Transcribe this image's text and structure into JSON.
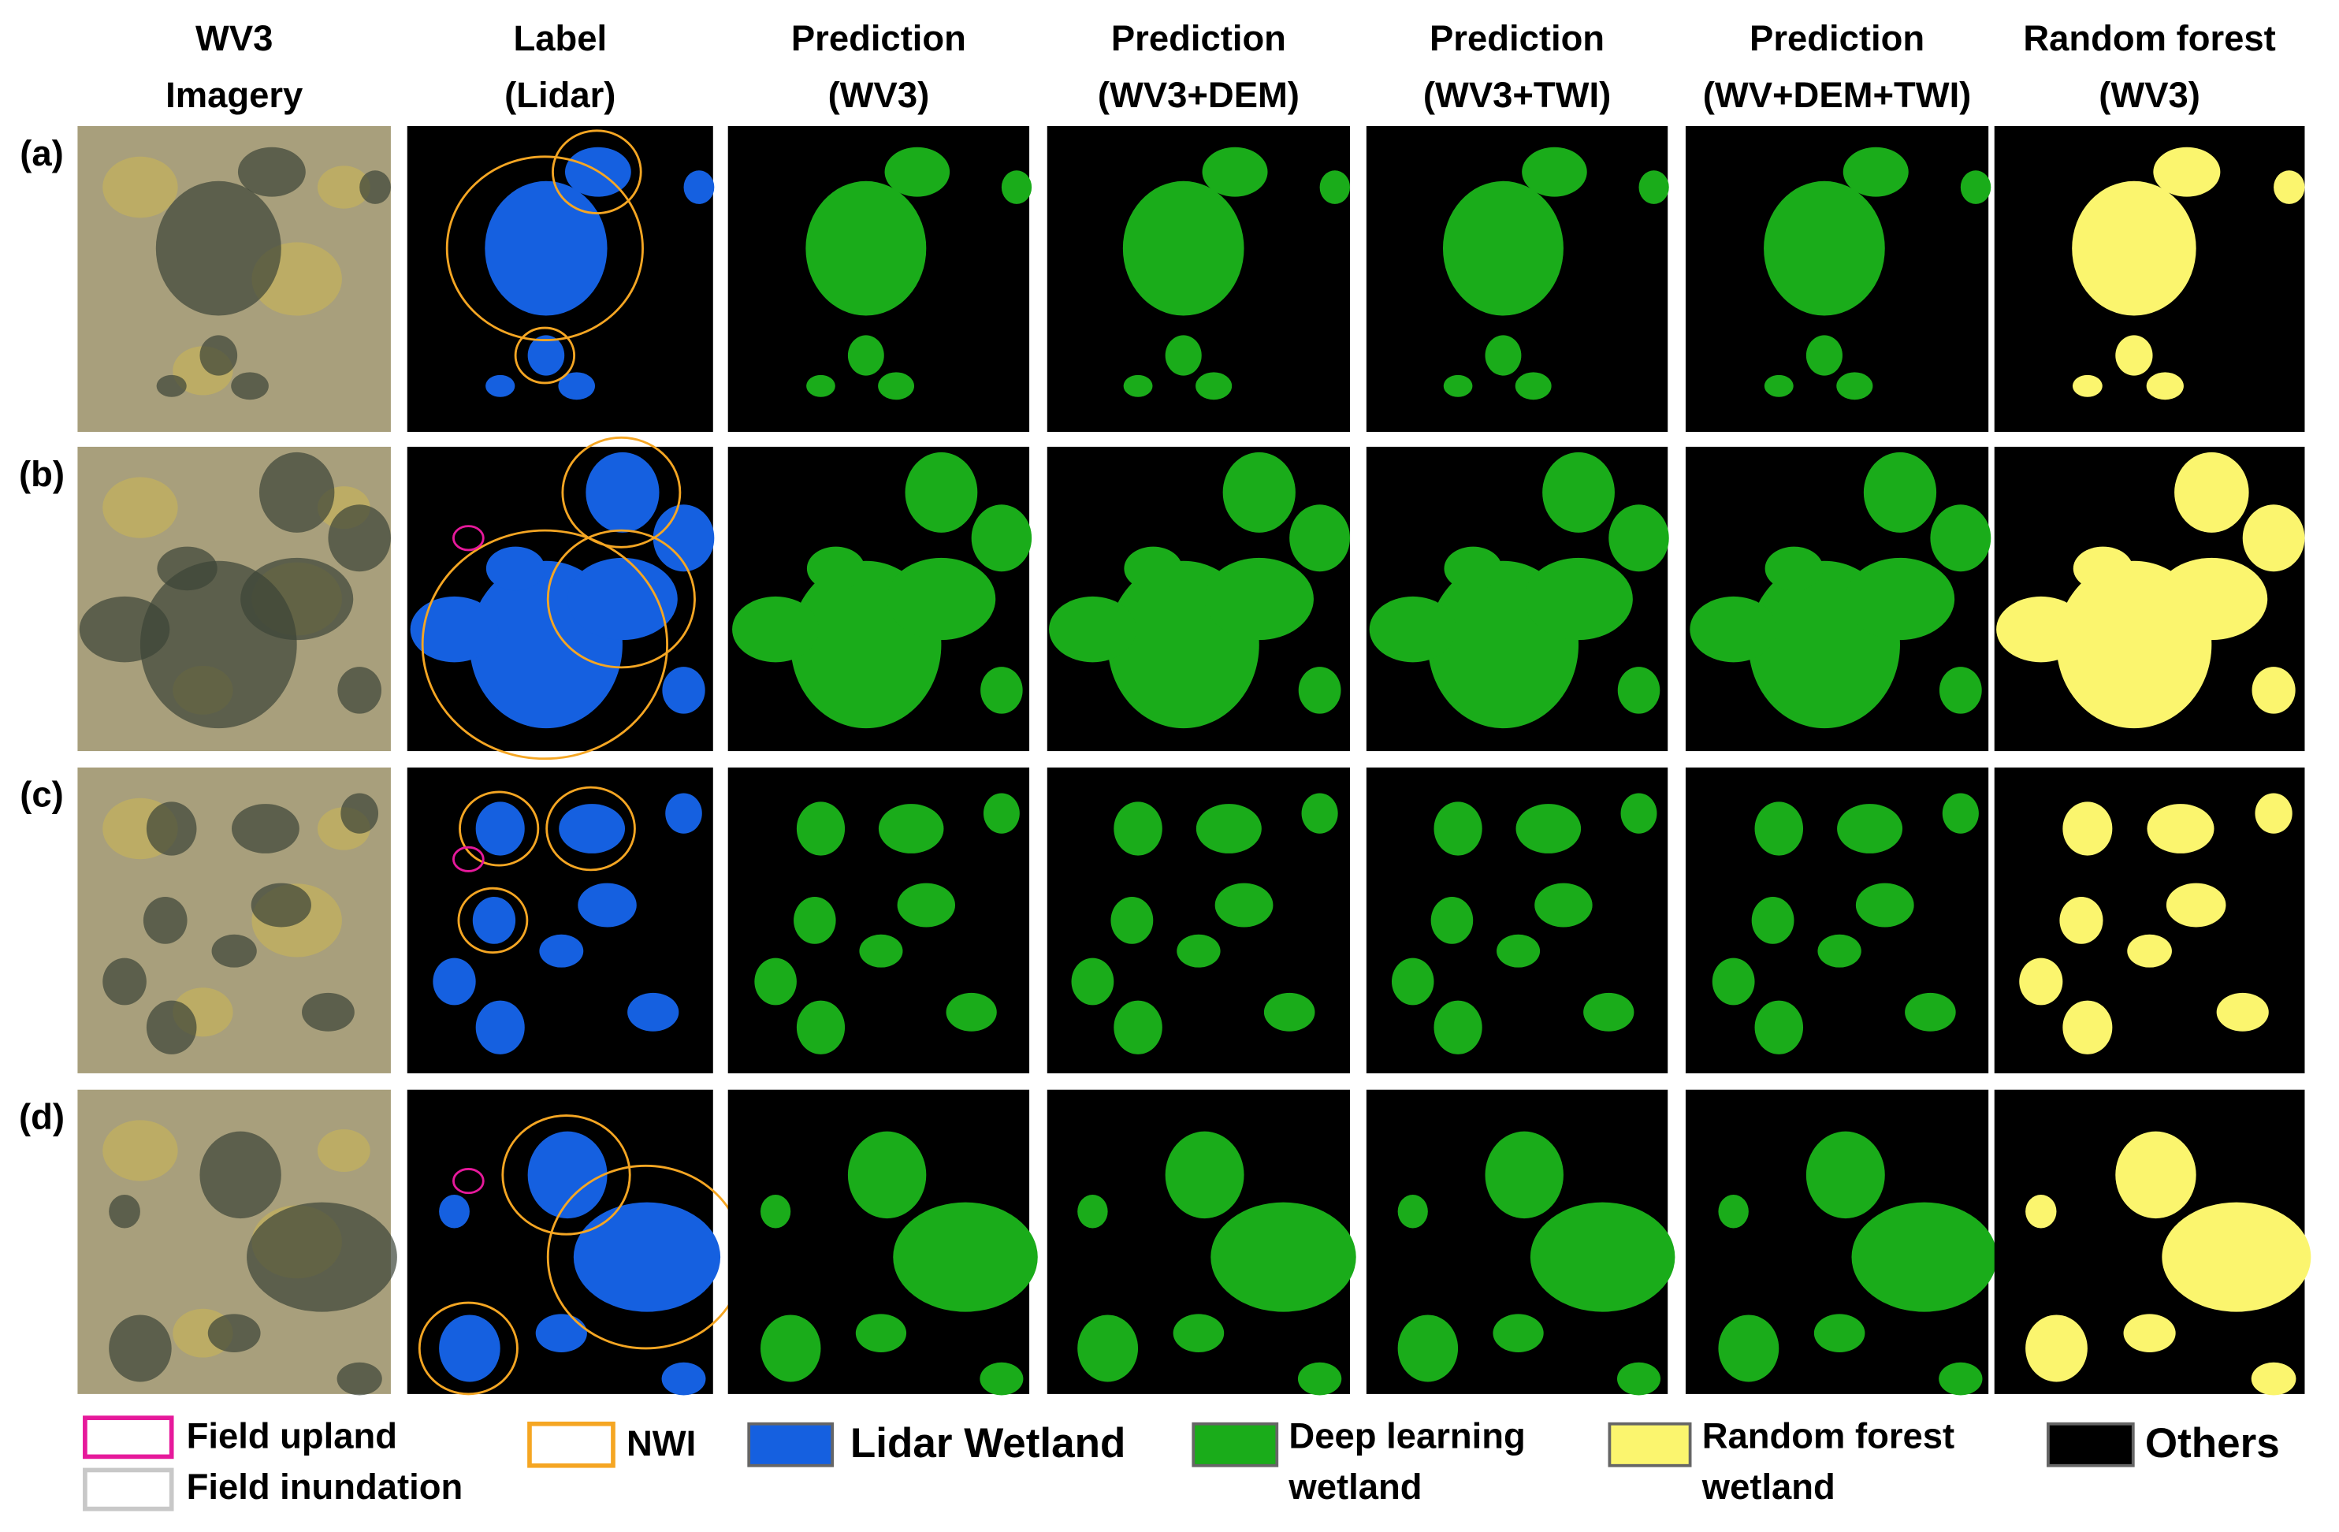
{
  "columns": [
    {
      "line1": "WV3",
      "line2": "Imagery"
    },
    {
      "line1": "Label",
      "line2": "(Lidar)"
    },
    {
      "line1": "Prediction",
      "line2": "(WV3)"
    },
    {
      "line1": "Prediction",
      "line2": "(WV3+DEM)"
    },
    {
      "line1": "Prediction",
      "line2": "(WV3+TWI)"
    },
    {
      "line1": "Prediction",
      "line2": "(WV+DEM+TWI)"
    },
    {
      "line1": "Random forest",
      "line2": "(WV3)"
    }
  ],
  "rows": [
    "(a)",
    "(b)",
    "(c)",
    "(d)"
  ],
  "legend": {
    "field_upland": "Field upland",
    "field_inundation": "Field inundation",
    "nwi": "NWI",
    "lidar_wetland": "Lidar Wetland",
    "deep_learning": {
      "line1": "Deep learning",
      "line2": "wetland"
    },
    "random_forest": {
      "line1": "Random forest",
      "line2": "wetland"
    },
    "others": "Others"
  }
}
